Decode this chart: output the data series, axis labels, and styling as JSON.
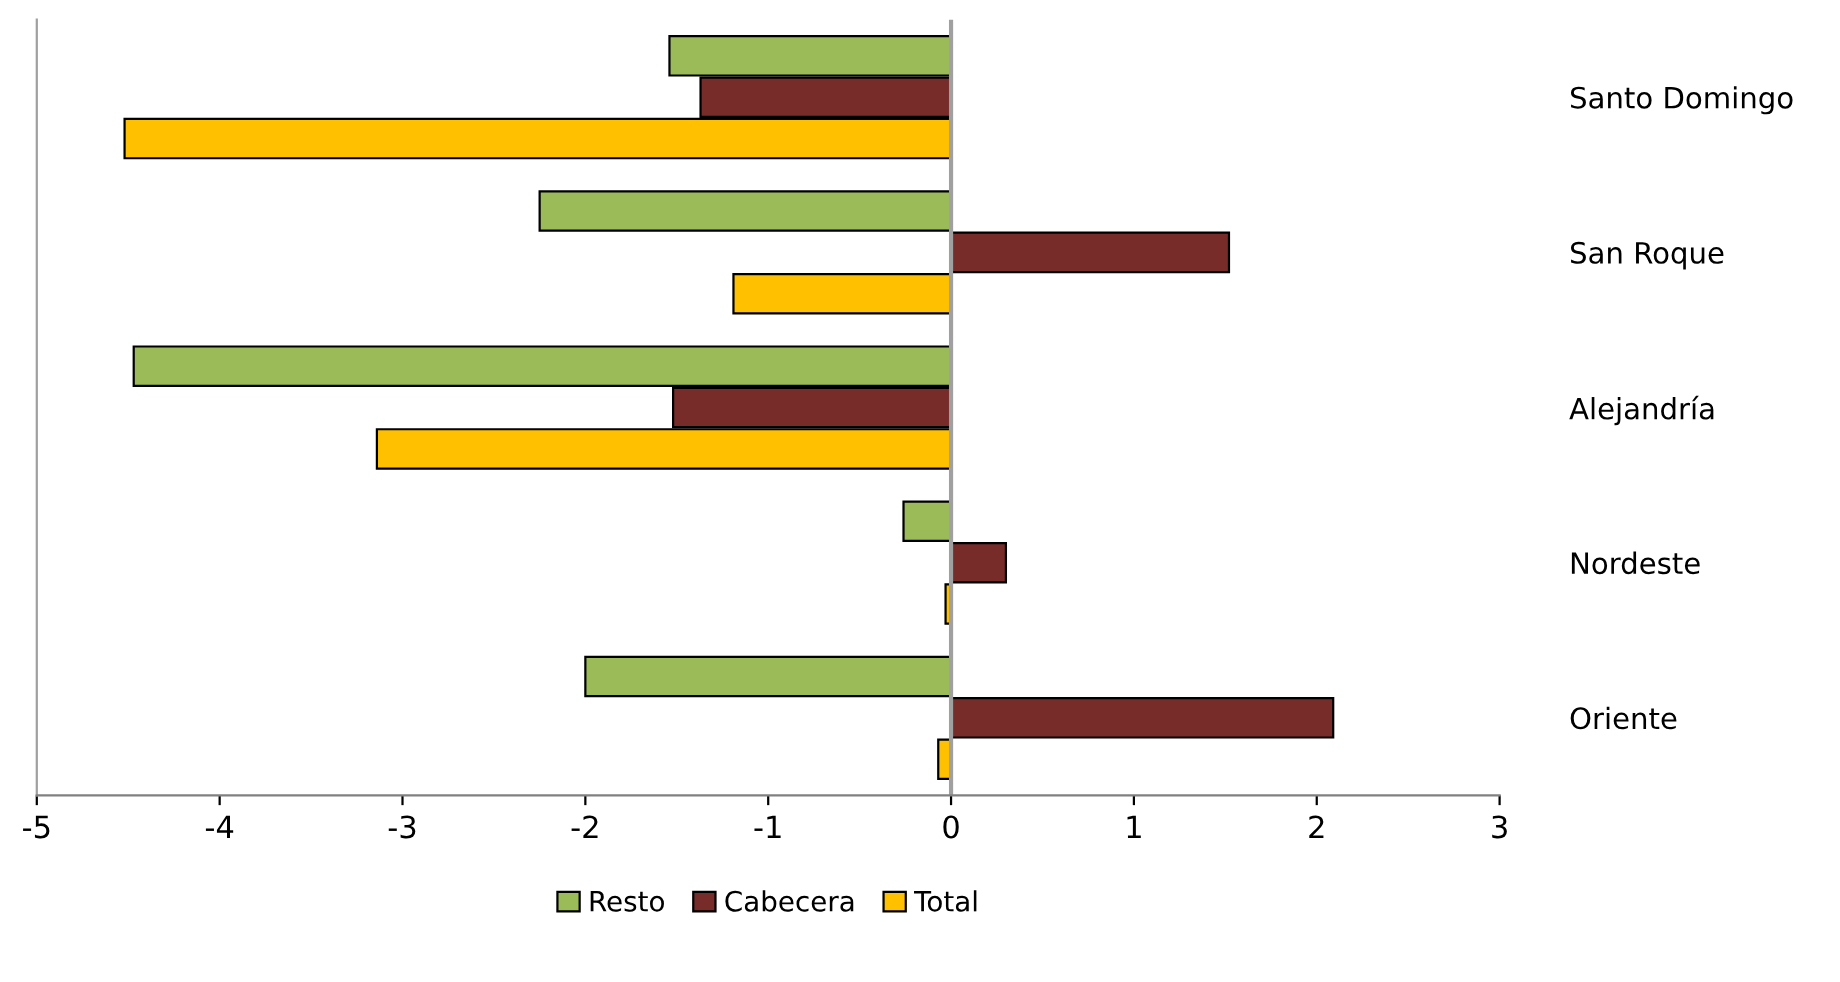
{
  "chart_data": {
    "type": "bar",
    "orientation": "horizontal",
    "categories": [
      "Santo Domingo",
      "San Roque",
      "Alejandría",
      "Nordeste",
      "Oriente"
    ],
    "series": [
      {
        "name": "Resto",
        "color": "#9bbb59",
        "values": [
          -1.54,
          -2.25,
          -4.47,
          -0.26,
          -2.0
        ]
      },
      {
        "name": "Cabecera",
        "color": "#772c2a",
        "values": [
          -1.37,
          1.52,
          -1.52,
          0.3,
          2.09
        ]
      },
      {
        "name": "Total",
        "color": "#ffc000",
        "values": [
          -4.52,
          -1.19,
          -3.14,
          -0.03,
          -0.07
        ]
      }
    ],
    "xlim": [
      -5,
      3
    ],
    "xticks": [
      -5,
      -4,
      -3,
      -2,
      -1,
      0,
      1,
      2,
      3
    ],
    "ref_lines": [
      {
        "axis": "x",
        "value": 0,
        "color": "#a0a0a0"
      }
    ],
    "grid": false,
    "legend": "bottom"
  }
}
